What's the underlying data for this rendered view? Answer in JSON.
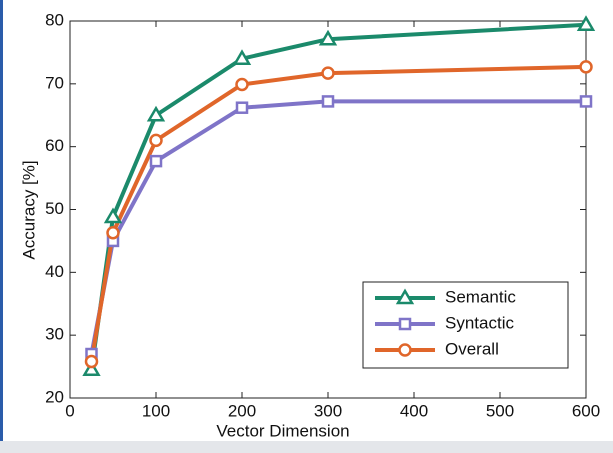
{
  "chart_data": {
    "type": "line",
    "xlabel": "Vector Dimension",
    "ylabel": "Accuracy [%]",
    "x": [
      25,
      50,
      100,
      200,
      300,
      600
    ],
    "series": [
      {
        "name": "Semantic",
        "color": "#1b8a6b",
        "marker": "triangle",
        "values": [
          24.5,
          48.8,
          65,
          74,
          77.1,
          79.4
        ]
      },
      {
        "name": "Syntactic",
        "color": "#7f74c8",
        "marker": "square",
        "values": [
          27,
          45,
          57.7,
          66.2,
          67.2,
          67.2
        ]
      },
      {
        "name": "Overall",
        "color": "#e0662a",
        "marker": "circle",
        "values": [
          25.8,
          46.3,
          61,
          69.9,
          71.7,
          72.7
        ]
      }
    ],
    "xlim": [
      0,
      600
    ],
    "xticks": [
      0,
      100,
      200,
      300,
      400,
      500,
      600
    ],
    "ylim": [
      20,
      80
    ],
    "yticks": [
      20,
      30,
      40,
      50,
      60,
      70,
      80
    ],
    "grid": false,
    "legend": "lower right"
  }
}
